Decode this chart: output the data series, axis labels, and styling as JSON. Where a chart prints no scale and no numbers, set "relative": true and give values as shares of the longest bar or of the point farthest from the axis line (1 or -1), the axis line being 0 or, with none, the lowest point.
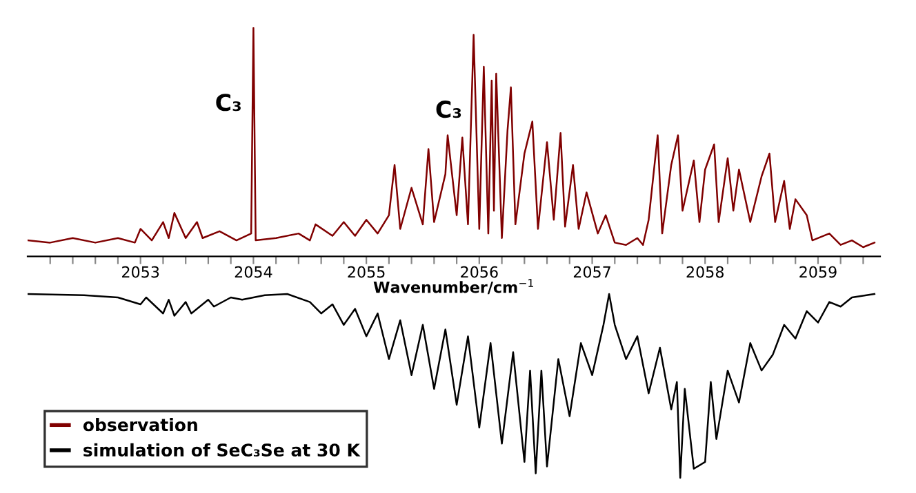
{
  "chart_data": {
    "type": "line",
    "relative": true,
    "xlabel": "Wavenumber/cm$^{−1}$",
    "legend": "bottom left",
    "tick_labels": "x",
    "marker": "none",
    "line_style": "solid",
    "xlim": [
      2052.0,
      2059.55
    ],
    "xticks": [
      {
        "value": 2052.2,
        "label": null
      },
      {
        "value": 2052.4,
        "label": null
      },
      {
        "value": 2052.6,
        "label": null
      },
      {
        "value": 2052.8,
        "label": null
      },
      2053,
      {
        "value": 2053.2,
        "label": null
      },
      {
        "value": 2053.4,
        "label": null
      },
      {
        "value": 2053.6,
        "label": null
      },
      {
        "value": 2053.8,
        "label": null
      },
      2054,
      {
        "value": 2054.2,
        "label": null
      },
      {
        "value": 2054.4,
        "label": null
      },
      {
        "value": 2054.6,
        "label": null
      },
      {
        "value": 2054.8,
        "label": null
      },
      2055,
      {
        "value": 2055.2,
        "label": null
      },
      {
        "value": 2055.4,
        "label": null
      },
      {
        "value": 2055.6,
        "label": null
      },
      {
        "value": 2055.8,
        "label": null
      },
      2056,
      {
        "value": 2056.2,
        "label": null
      },
      {
        "value": 2056.4,
        "label": null
      },
      {
        "value": 2056.6,
        "label": null
      },
      {
        "value": 2056.8,
        "label": null
      },
      2057,
      {
        "value": 2057.2,
        "label": null
      },
      {
        "value": 2057.4,
        "label": null
      },
      {
        "value": 2057.6,
        "label": null
      },
      {
        "value": 2057.8,
        "label": null
      },
      2058,
      {
        "value": 2058.2,
        "label": null
      },
      {
        "value": 2058.4,
        "label": null
      },
      {
        "value": 2058.6,
        "label": null
      },
      {
        "value": 2058.8,
        "label": null
      },
      2059,
      {
        "value": 2059.2,
        "label": null
      },
      {
        "value": 2059.4,
        "label": null
      }
    ],
    "annotations": [
      {
        "text": "C₃",
        "x": 2054.0,
        "y": 1.0
      },
      {
        "text": "C₃",
        "x": 2055.95,
        "y": 0.97
      }
    ],
    "series": [
      {
        "name": "observation",
        "color": "#800000",
        "x": [
          2052.0,
          2052.2,
          2052.4,
          2052.6,
          2052.8,
          2052.95,
          2053.0,
          2053.1,
          2053.2,
          2053.25,
          2053.3,
          2053.4,
          2053.5,
          2053.55,
          2053.7,
          2053.85,
          2053.98,
          2054.0,
          2054.02,
          2054.2,
          2054.4,
          2054.5,
          2054.55,
          2054.7,
          2054.8,
          2054.9,
          2055.0,
          2055.1,
          2055.2,
          2055.25,
          2055.3,
          2055.4,
          2055.5,
          2055.55,
          2055.6,
          2055.7,
          2055.72,
          2055.8,
          2055.85,
          2055.9,
          2055.95,
          2056.0,
          2056.04,
          2056.08,
          2056.11,
          2056.13,
          2056.15,
          2056.2,
          2056.25,
          2056.28,
          2056.32,
          2056.4,
          2056.47,
          2056.52,
          2056.6,
          2056.66,
          2056.72,
          2056.76,
          2056.83,
          2056.88,
          2056.95,
          2057.05,
          2057.12,
          2057.2,
          2057.3,
          2057.4,
          2057.45,
          2057.5,
          2057.58,
          2057.62,
          2057.7,
          2057.76,
          2057.8,
          2057.9,
          2057.95,
          2058.0,
          2058.08,
          2058.12,
          2058.2,
          2058.25,
          2058.3,
          2058.4,
          2058.5,
          2058.57,
          2058.62,
          2058.7,
          2058.75,
          2058.8,
          2058.9,
          2058.95,
          2059.1,
          2059.2,
          2059.3,
          2059.4,
          2059.5
        ],
        "values": [
          0.07,
          0.06,
          0.08,
          0.06,
          0.08,
          0.06,
          0.12,
          0.07,
          0.15,
          0.08,
          0.19,
          0.08,
          0.15,
          0.08,
          0.11,
          0.07,
          0.1,
          1.0,
          0.07,
          0.08,
          0.1,
          0.07,
          0.14,
          0.09,
          0.15,
          0.09,
          0.16,
          0.1,
          0.18,
          0.4,
          0.12,
          0.3,
          0.14,
          0.47,
          0.15,
          0.36,
          0.53,
          0.18,
          0.52,
          0.14,
          0.97,
          0.12,
          0.83,
          0.1,
          0.77,
          0.2,
          0.8,
          0.08,
          0.55,
          0.74,
          0.14,
          0.45,
          0.59,
          0.12,
          0.5,
          0.16,
          0.54,
          0.13,
          0.4,
          0.12,
          0.28,
          0.1,
          0.18,
          0.06,
          0.05,
          0.08,
          0.05,
          0.16,
          0.53,
          0.1,
          0.4,
          0.53,
          0.2,
          0.42,
          0.15,
          0.38,
          0.49,
          0.15,
          0.43,
          0.2,
          0.38,
          0.15,
          0.35,
          0.45,
          0.15,
          0.33,
          0.12,
          0.25,
          0.18,
          0.07,
          0.1,
          0.05,
          0.07,
          0.04,
          0.06
        ]
      },
      {
        "name": "simulation of SeC₃Se at 30 K",
        "color": "#000000",
        "x": [
          2052.0,
          2052.5,
          2052.8,
          2053.0,
          2053.05,
          2053.2,
          2053.25,
          2053.3,
          2053.4,
          2053.45,
          2053.6,
          2053.65,
          2053.8,
          2053.9,
          2054.1,
          2054.3,
          2054.5,
          2054.6,
          2054.7,
          2054.8,
          2054.9,
          2055.0,
          2055.1,
          2055.2,
          2055.3,
          2055.4,
          2055.5,
          2055.6,
          2055.7,
          2055.8,
          2055.9,
          2056.0,
          2056.1,
          2056.2,
          2056.3,
          2056.4,
          2056.45,
          2056.5,
          2056.55,
          2056.6,
          2056.7,
          2056.8,
          2056.9,
          2057.0,
          2057.1,
          2057.15,
          2057.2,
          2057.3,
          2057.4,
          2057.5,
          2057.6,
          2057.7,
          2057.75,
          2057.78,
          2057.82,
          2057.9,
          2058.0,
          2058.05,
          2058.1,
          2058.2,
          2058.3,
          2058.4,
          2058.5,
          2058.6,
          2058.7,
          2058.8,
          2058.9,
          2059.0,
          2059.1,
          2059.2,
          2059.3,
          2059.5
        ],
        "values": [
          -0.165,
          -0.17,
          -0.18,
          -0.21,
          -0.18,
          -0.25,
          -0.19,
          -0.26,
          -0.2,
          -0.25,
          -0.19,
          -0.22,
          -0.18,
          -0.19,
          -0.17,
          -0.165,
          -0.2,
          -0.25,
          -0.21,
          -0.3,
          -0.23,
          -0.35,
          -0.25,
          -0.45,
          -0.28,
          -0.52,
          -0.3,
          -0.58,
          -0.32,
          -0.65,
          -0.35,
          -0.75,
          -0.38,
          -0.82,
          -0.42,
          -0.9,
          -0.5,
          -0.95,
          -0.5,
          -0.92,
          -0.45,
          -0.7,
          -0.38,
          -0.52,
          -0.3,
          -0.165,
          -0.3,
          -0.45,
          -0.35,
          -0.6,
          -0.4,
          -0.67,
          -0.55,
          -0.97,
          -0.58,
          -0.93,
          -0.9,
          -0.55,
          -0.8,
          -0.5,
          -0.64,
          -0.38,
          -0.5,
          -0.43,
          -0.3,
          -0.36,
          -0.24,
          -0.29,
          -0.2,
          -0.22,
          -0.18,
          -0.165
        ]
      }
    ]
  }
}
